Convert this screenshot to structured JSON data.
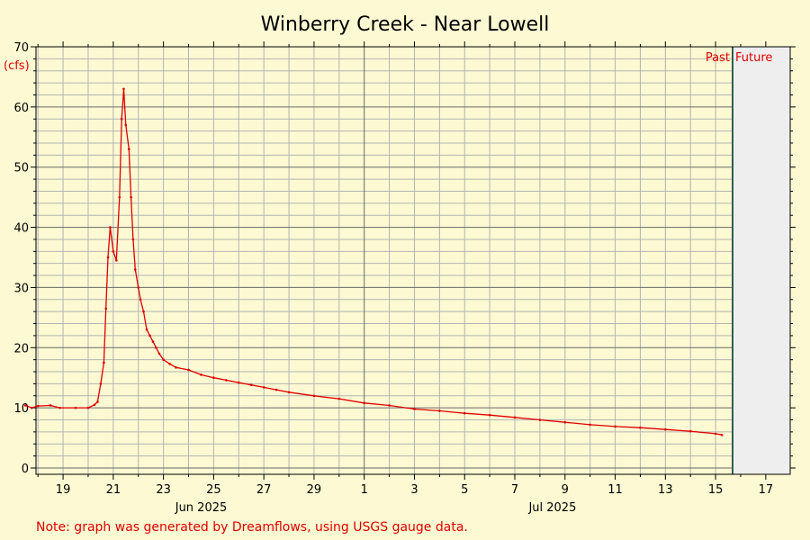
{
  "chart_data": {
    "type": "line",
    "title": "Winberry Creek - Near Lowell",
    "ylabel": "(cfs)",
    "ylim": [
      0,
      70
    ],
    "y_ticks": [
      0,
      10,
      20,
      30,
      40,
      50,
      60,
      70
    ],
    "x_tick_labels": [
      "19",
      "21",
      "23",
      "25",
      "27",
      "29",
      "1",
      "3",
      "5",
      "7",
      "9",
      "11",
      "13",
      "15",
      "17"
    ],
    "month_labels": [
      "Jun 2025",
      "Jul 2025"
    ],
    "past_label": "Past",
    "future_label": "Future",
    "note": "Note: graph was generated by Dreamflows, using USGS gauge data.",
    "grid": true,
    "colors": {
      "line": "#e00000",
      "background": "#fdf9d2",
      "future_region": "#eeeeee",
      "now_line": "#2f5f4f"
    },
    "series": [
      {
        "x": [
          "2025-06-17T12:00",
          "2025-06-17T18:00",
          "2025-06-18T00:00",
          "2025-06-18T12:00",
          "2025-06-18T21:00",
          "2025-06-19T12:00",
          "2025-06-20T00:00",
          "2025-06-20T06:00",
          "2025-06-20T09:00",
          "2025-06-20T12:00",
          "2025-06-20T15:00",
          "2025-06-20T17:00",
          "2025-06-20T19:00",
          "2025-06-20T21:00",
          "2025-06-21T00:00",
          "2025-06-21T03:00",
          "2025-06-21T06:00",
          "2025-06-21T08:00",
          "2025-06-21T10:00",
          "2025-06-21T12:00",
          "2025-06-21T15:00",
          "2025-06-21T17:00",
          "2025-06-21T19:00",
          "2025-06-21T21:00",
          "2025-06-22T00:00",
          "2025-06-22T02:00",
          "2025-06-22T05:00",
          "2025-06-22T08:00",
          "2025-06-22T11:00",
          "2025-06-22T14:00",
          "2025-06-22T17:00",
          "2025-06-22T20:00",
          "2025-06-23T00:00",
          "2025-06-23T06:00",
          "2025-06-23T12:00",
          "2025-06-24T00:00",
          "2025-06-24T12:00",
          "2025-06-25T00:00",
          "2025-06-25T12:00",
          "2025-06-26T00:00",
          "2025-06-26T12:00",
          "2025-06-27T00:00",
          "2025-06-27T12:00",
          "2025-06-28T00:00",
          "2025-06-29T00:00",
          "2025-06-30T00:00",
          "2025-07-01T00:00",
          "2025-07-02T00:00",
          "2025-07-03T00:00",
          "2025-07-04T00:00",
          "2025-07-05T00:00",
          "2025-07-06T00:00",
          "2025-07-07T00:00",
          "2025-07-08T00:00",
          "2025-07-09T00:00",
          "2025-07-10T00:00",
          "2025-07-11T00:00",
          "2025-07-12T00:00",
          "2025-07-13T00:00",
          "2025-07-14T00:00",
          "2025-07-15T00:00",
          "2025-07-15T06:00"
        ],
        "y": [
          10.4,
          10.0,
          10.3,
          10.4,
          10.0,
          10.0,
          10.0,
          10.5,
          11.0,
          14.0,
          17.5,
          26.5,
          35.0,
          40.0,
          36.0,
          34.5,
          45.0,
          58.0,
          63.0,
          57.0,
          53.0,
          45.0,
          38.0,
          33.0,
          30.0,
          28.0,
          26.0,
          23.0,
          22.0,
          21.0,
          20.0,
          19.0,
          18.0,
          17.3,
          16.7,
          16.3,
          15.5,
          15.0,
          14.6,
          14.2,
          13.8,
          13.4,
          13.0,
          12.6,
          12.0,
          11.5,
          10.8,
          10.4,
          9.8,
          9.5,
          9.1,
          8.8,
          8.4,
          8.0,
          7.6,
          7.2,
          6.9,
          6.7,
          6.4,
          6.1,
          5.7,
          5.5
        ]
      }
    ]
  }
}
